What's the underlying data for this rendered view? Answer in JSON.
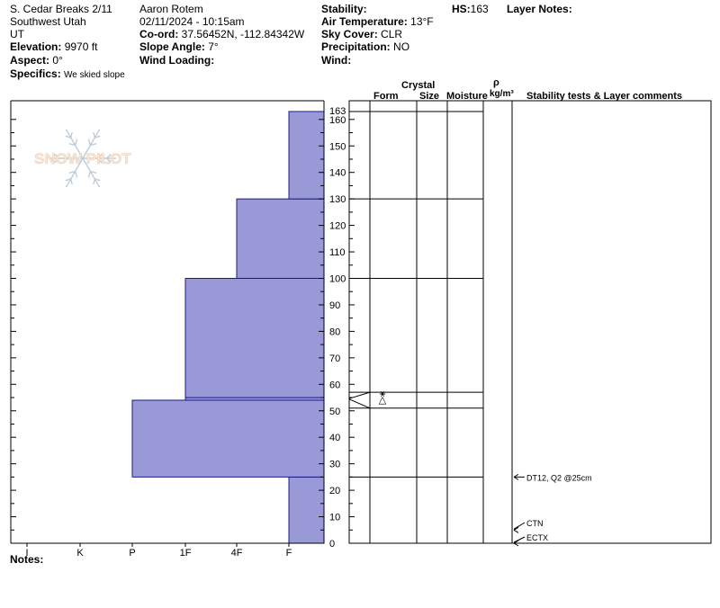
{
  "header": {
    "location_name": "S. Cedar Breaks 2/11",
    "region": "Southwest Utah",
    "state": "UT",
    "elevation_label": "Elevation:",
    "elevation_value": "9970 ft",
    "aspect_label": "Aspect:",
    "aspect_value": "0°",
    "specifics_label": "Specifics:",
    "specifics_value": "We skied slope",
    "observer": "Aaron Rotem",
    "datetime": "02/11/2024 - 10:15am",
    "coord_label": "Co-ord:",
    "coord_value": "37.56452N, -112.84342W",
    "slope_label": "Slope Angle:",
    "slope_value": "7°",
    "wind_loading_label": "Wind Loading:",
    "wind_loading_value": "",
    "stability_label": "Stability:",
    "stability_value": "",
    "air_temp_label": "Air Temperature:",
    "air_temp_value": "13°F",
    "sky_label": "Sky Cover:",
    "sky_value": "CLR",
    "precip_label": "Precipitation:",
    "precip_value": "NO",
    "wind_label": "Wind:",
    "wind_value": "",
    "hs_label": "HS:",
    "hs_value": "163",
    "layer_notes_label": "Layer Notes:"
  },
  "watermark": {
    "text": "SNOW PILOT"
  },
  "columns": {
    "crystal": "Crystal",
    "form": "Form",
    "size": "Size",
    "moisture": "Moisture",
    "rho": "ρ",
    "density_unit": "kg/m³",
    "stability_comments": "Stability tests & Layer comments"
  },
  "notes_label": "Notes:",
  "chart_data": {
    "type": "bar",
    "title": "",
    "xlabel": "",
    "ylabel": "",
    "hardness_scale": [
      "I",
      "K",
      "P",
      "1F",
      "4F",
      "F"
    ],
    "y_ticks": [
      0,
      10,
      20,
      30,
      40,
      50,
      60,
      70,
      80,
      90,
      100,
      110,
      120,
      130,
      140,
      150,
      160
    ],
    "y_top_label": "163",
    "ylim": [
      0,
      165
    ],
    "layers": [
      {
        "bottom": 0,
        "top": 25,
        "hardness": "F"
      },
      {
        "bottom": 25,
        "top": 54,
        "hardness": "P"
      },
      {
        "bottom": 54,
        "top": 55,
        "hardness": "1F"
      },
      {
        "bottom": 55,
        "top": 100,
        "hardness": "1F"
      },
      {
        "bottom": 100,
        "top": 130,
        "hardness": "4F"
      },
      {
        "bottom": 130,
        "top": 163,
        "hardness": "F"
      }
    ],
    "layer_boundaries": [
      0,
      25,
      51,
      57,
      100,
      130,
      163
    ],
    "grain_symbols": [
      {
        "height": 55,
        "symbol": "⚹"
      },
      {
        "height": 55,
        "symbol": "△"
      }
    ],
    "stability_tests": [
      {
        "height": 25,
        "label": "DT12, Q2 @25cm"
      },
      {
        "height": 5,
        "label": "CTN"
      },
      {
        "height": 0,
        "label": "ECTX"
      }
    ]
  }
}
